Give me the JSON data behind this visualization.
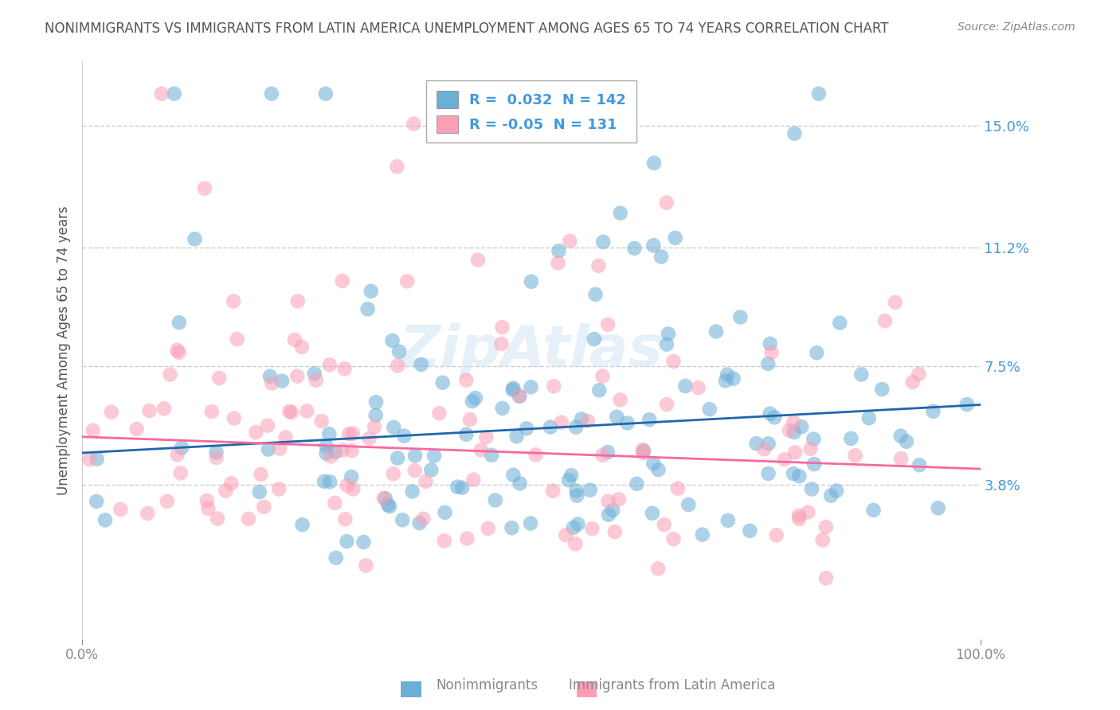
{
  "title": "NONIMMIGRANTS VS IMMIGRANTS FROM LATIN AMERICA UNEMPLOYMENT AMONG AGES 65 TO 74 YEARS CORRELATION CHART",
  "source": "Source: ZipAtlas.com",
  "ylabel": "Unemployment Among Ages 65 to 74 years",
  "xlim": [
    0,
    100
  ],
  "ylim": [
    -1,
    17
  ],
  "yticks": [
    3.8,
    7.5,
    11.2,
    15.0
  ],
  "ytick_labels": [
    "3.8%",
    "7.5%",
    "11.2%",
    "15.0%"
  ],
  "blue_R": 0.032,
  "blue_N": 142,
  "pink_R": -0.05,
  "pink_N": 131,
  "blue_color": "#6baed6",
  "pink_color": "#fa9fb5",
  "blue_line_color": "#2166ac",
  "pink_line_color": "#f768a1",
  "background_color": "#ffffff",
  "grid_color": "#cccccc",
  "title_color": "#555555",
  "label_color": "#888888",
  "watermark": "ZipAtlas",
  "seed": 42,
  "blue_trend_intercept": 4.8,
  "blue_trend_slope": 0.015,
  "pink_trend_intercept": 5.3,
  "pink_trend_slope": -0.01
}
